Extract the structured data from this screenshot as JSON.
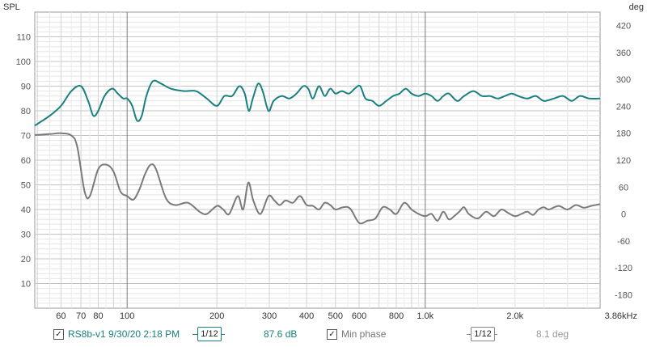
{
  "chart_data": {
    "type": "line",
    "ylabel_left": "SPL",
    "ylabel_right": "deg",
    "xscale": "log",
    "xlim": [
      49,
      3860
    ],
    "ylim": [
      0,
      120
    ],
    "ylim_right": [
      -210,
      450
    ],
    "grid": true,
    "x_ticks": [
      {
        "value": 60,
        "label": "60"
      },
      {
        "value": 70,
        "label": "70"
      },
      {
        "value": 80,
        "label": "80"
      },
      {
        "value": 100,
        "label": "100"
      },
      {
        "value": 200,
        "label": "200"
      },
      {
        "value": 300,
        "label": "300"
      },
      {
        "value": 400,
        "label": "400"
      },
      {
        "value": 500,
        "label": "500"
      },
      {
        "value": 600,
        "label": "600"
      },
      {
        "value": 800,
        "label": "800"
      },
      {
        "value": 1000,
        "label": "1.0k"
      },
      {
        "value": 2000,
        "label": "2.0k"
      },
      {
        "value": 3860,
        "label": "3.86kHz"
      }
    ],
    "y_ticks_left": [
      "10",
      "20",
      "30",
      "40",
      "50",
      "60",
      "70",
      "80",
      "90",
      "100",
      "110"
    ],
    "y_ticks_right": [
      "-180",
      "-120",
      "-60",
      "0",
      "60",
      "120",
      "180",
      "240",
      "300",
      "360",
      "420"
    ],
    "series": [
      {
        "name": "RS8b-v1 9/30/20 2:18 PM",
        "axis": "left",
        "color": "#1a7f7f",
        "points": [
          [
            49,
            74
          ],
          [
            55,
            78
          ],
          [
            60,
            82
          ],
          [
            65,
            88
          ],
          [
            70,
            90
          ],
          [
            74,
            84
          ],
          [
            77,
            78
          ],
          [
            80,
            80
          ],
          [
            84,
            86
          ],
          [
            89,
            89
          ],
          [
            93,
            87
          ],
          [
            97,
            85
          ],
          [
            100,
            85
          ],
          [
            104,
            82
          ],
          [
            108,
            76
          ],
          [
            112,
            78
          ],
          [
            116,
            86
          ],
          [
            122,
            92
          ],
          [
            130,
            91
          ],
          [
            140,
            89
          ],
          [
            155,
            88
          ],
          [
            170,
            88
          ],
          [
            185,
            85
          ],
          [
            200,
            82
          ],
          [
            212,
            86
          ],
          [
            225,
            86
          ],
          [
            238,
            90
          ],
          [
            248,
            87
          ],
          [
            256,
            80
          ],
          [
            264,
            85
          ],
          [
            275,
            91
          ],
          [
            285,
            88
          ],
          [
            298,
            80
          ],
          [
            310,
            84
          ],
          [
            330,
            86
          ],
          [
            350,
            85
          ],
          [
            370,
            87
          ],
          [
            390,
            90
          ],
          [
            405,
            89
          ],
          [
            420,
            85
          ],
          [
            440,
            90
          ],
          [
            460,
            86
          ],
          [
            480,
            89
          ],
          [
            500,
            87
          ],
          [
            525,
            88
          ],
          [
            555,
            87
          ],
          [
            580,
            89
          ],
          [
            605,
            90
          ],
          [
            630,
            85
          ],
          [
            665,
            84
          ],
          [
            700,
            82
          ],
          [
            740,
            84
          ],
          [
            780,
            86
          ],
          [
            820,
            87
          ],
          [
            860,
            89
          ],
          [
            900,
            87
          ],
          [
            950,
            86
          ],
          [
            1000,
            87
          ],
          [
            1050,
            86
          ],
          [
            1100,
            84
          ],
          [
            1150,
            86
          ],
          [
            1200,
            87
          ],
          [
            1280,
            84
          ],
          [
            1350,
            86
          ],
          [
            1450,
            88
          ],
          [
            1550,
            86
          ],
          [
            1650,
            86
          ],
          [
            1750,
            85
          ],
          [
            1850,
            86
          ],
          [
            1950,
            87
          ],
          [
            2050,
            86
          ],
          [
            2200,
            85
          ],
          [
            2350,
            86
          ],
          [
            2500,
            84
          ],
          [
            2700,
            85
          ],
          [
            2900,
            86
          ],
          [
            3100,
            84
          ],
          [
            3300,
            86
          ],
          [
            3550,
            85
          ],
          [
            3860,
            85
          ]
        ]
      },
      {
        "name": "Min phase",
        "axis": "right",
        "color": "#7a7a7a",
        "points": [
          [
            49,
            176
          ],
          [
            55,
            178
          ],
          [
            60,
            180
          ],
          [
            65,
            175
          ],
          [
            68,
            150
          ],
          [
            72,
            50
          ],
          [
            75,
            40
          ],
          [
            80,
            100
          ],
          [
            85,
            110
          ],
          [
            90,
            95
          ],
          [
            95,
            50
          ],
          [
            100,
            40
          ],
          [
            105,
            32
          ],
          [
            110,
            55
          ],
          [
            115,
            90
          ],
          [
            120,
            110
          ],
          [
            125,
            100
          ],
          [
            135,
            35
          ],
          [
            145,
            20
          ],
          [
            160,
            25
          ],
          [
            175,
            5
          ],
          [
            185,
            0
          ],
          [
            200,
            18
          ],
          [
            210,
            10
          ],
          [
            220,
            0
          ],
          [
            235,
            40
          ],
          [
            245,
            10
          ],
          [
            255,
            70
          ],
          [
            265,
            30
          ],
          [
            280,
            0
          ],
          [
            298,
            40
          ],
          [
            312,
            30
          ],
          [
            325,
            20
          ],
          [
            340,
            30
          ],
          [
            360,
            25
          ],
          [
            380,
            40
          ],
          [
            400,
            20
          ],
          [
            420,
            18
          ],
          [
            440,
            10
          ],
          [
            460,
            25
          ],
          [
            480,
            20
          ],
          [
            500,
            10
          ],
          [
            530,
            15
          ],
          [
            560,
            12
          ],
          [
            600,
            -20
          ],
          [
            640,
            -15
          ],
          [
            680,
            -10
          ],
          [
            720,
            15
          ],
          [
            760,
            10
          ],
          [
            800,
            0
          ],
          [
            850,
            25
          ],
          [
            900,
            10
          ],
          [
            950,
            0
          ],
          [
            1000,
            -5
          ],
          [
            1050,
            0
          ],
          [
            1100,
            -15
          ],
          [
            1150,
            5
          ],
          [
            1200,
            -12
          ],
          [
            1250,
            -5
          ],
          [
            1300,
            5
          ],
          [
            1350,
            15
          ],
          [
            1400,
            0
          ],
          [
            1500,
            -10
          ],
          [
            1600,
            5
          ],
          [
            1700,
            -5
          ],
          [
            1800,
            10
          ],
          [
            1900,
            2
          ],
          [
            2000,
            -5
          ],
          [
            2100,
            0
          ],
          [
            2200,
            5
          ],
          [
            2300,
            -2
          ],
          [
            2400,
            10
          ],
          [
            2500,
            15
          ],
          [
            2600,
            10
          ],
          [
            2800,
            18
          ],
          [
            3000,
            10
          ],
          [
            3200,
            20
          ],
          [
            3400,
            14
          ],
          [
            3600,
            18
          ],
          [
            3860,
            22
          ]
        ]
      }
    ]
  },
  "legend": {
    "trace_name": "RS8b-v1 9/30/20 2:18 PM",
    "smoothing": "1/12",
    "trace_value": "87.6 dB",
    "phase_label": "Min phase",
    "phase_smoothing": "1/12",
    "phase_value": "8.1 deg",
    "check_mark": "✓"
  }
}
